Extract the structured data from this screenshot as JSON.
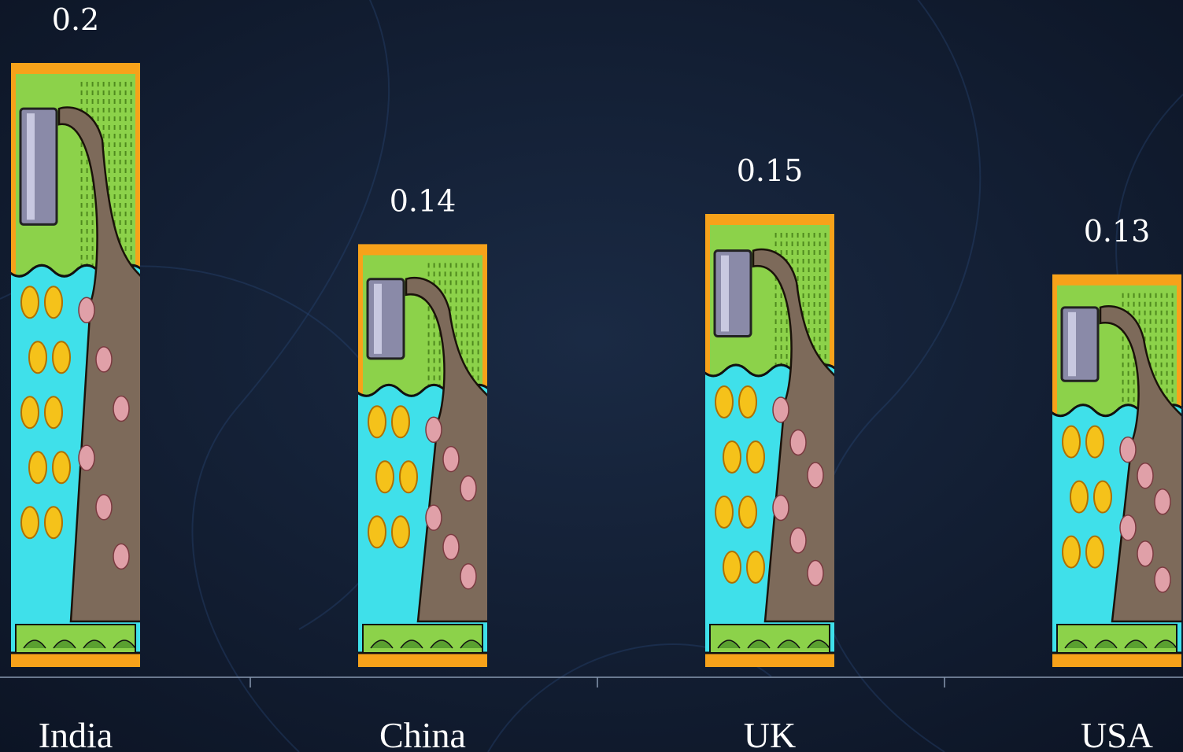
{
  "chart_data": {
    "type": "bar",
    "categories": [
      "India",
      "China",
      "UK",
      "USA"
    ],
    "values": [
      0.2,
      0.14,
      0.15,
      0.13
    ],
    "value_labels": [
      "0.2",
      "0.14",
      "0.15",
      "0.13"
    ],
    "title": "",
    "xlabel": "",
    "ylabel": "",
    "ylim": [
      0,
      0.2
    ],
    "grid": false,
    "legend": "none",
    "bar_fill": "pipe-and-water clipart pictograph",
    "colors": {
      "background": "#0f1a2c",
      "frame": "#f7a21a",
      "grass": "#8cd24a",
      "water": "#3fe0ea",
      "sludge": "#7d6a5a",
      "blob": "#e0a0a8",
      "pipe": "#8a8aa8",
      "fish": "#f5c21a"
    }
  }
}
